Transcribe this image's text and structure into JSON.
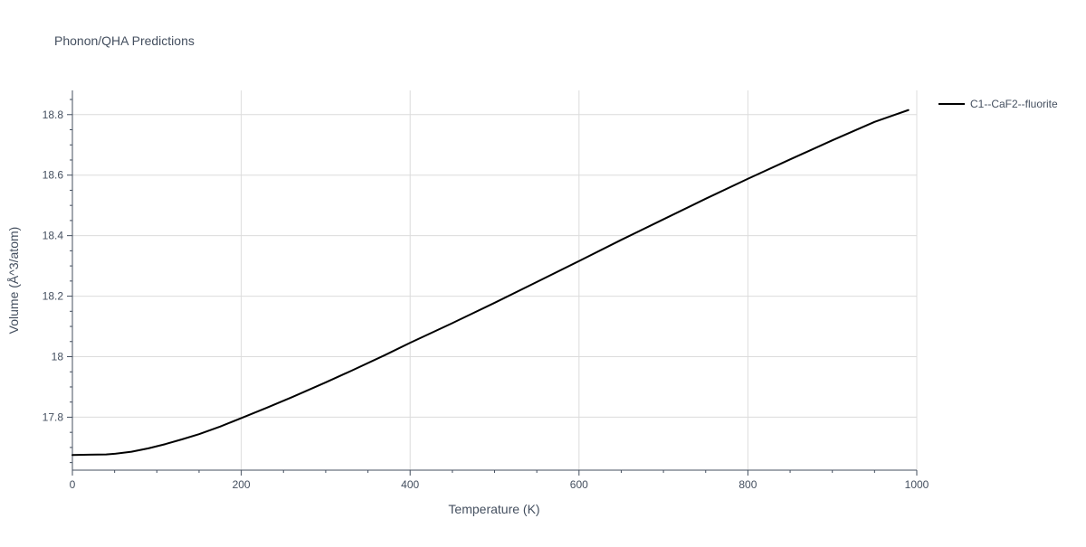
{
  "chart_data": {
    "type": "line",
    "title": "Phonon/QHA Predictions",
    "xlabel": "Temperature (K)",
    "ylabel": "Volume (Å^3/atom)",
    "xlim": [
      0,
      1000
    ],
    "ylim": [
      17.625,
      18.88
    ],
    "x_ticks": [
      0,
      200,
      400,
      600,
      800,
      1000
    ],
    "x_tick_labels": [
      "0",
      "200",
      "400",
      "600",
      "800",
      "1000"
    ],
    "y_ticks": [
      17.8,
      18.0,
      18.2,
      18.4,
      18.6,
      18.8
    ],
    "y_tick_labels": [
      "17.8",
      "18",
      "18.2",
      "18.4",
      "18.6",
      "18.8"
    ],
    "grid": true,
    "legend_position": "top-right",
    "series": [
      {
        "name": "C1--CaF2--fluorite",
        "color": "#000000",
        "x": [
          0,
          20,
          40,
          50,
          70,
          90,
          110,
          130,
          150,
          175,
          200,
          230,
          260,
          300,
          330,
          370,
          400,
          450,
          500,
          550,
          600,
          650,
          700,
          750,
          800,
          850,
          900,
          950,
          990
        ],
        "y": [
          17.675,
          17.676,
          17.677,
          17.679,
          17.686,
          17.697,
          17.711,
          17.727,
          17.744,
          17.769,
          17.797,
          17.831,
          17.866,
          17.915,
          17.953,
          18.005,
          18.046,
          18.111,
          18.178,
          18.247,
          18.316,
          18.386,
          18.454,
          18.522,
          18.588,
          18.652,
          18.715,
          18.776,
          18.815
        ]
      }
    ]
  }
}
